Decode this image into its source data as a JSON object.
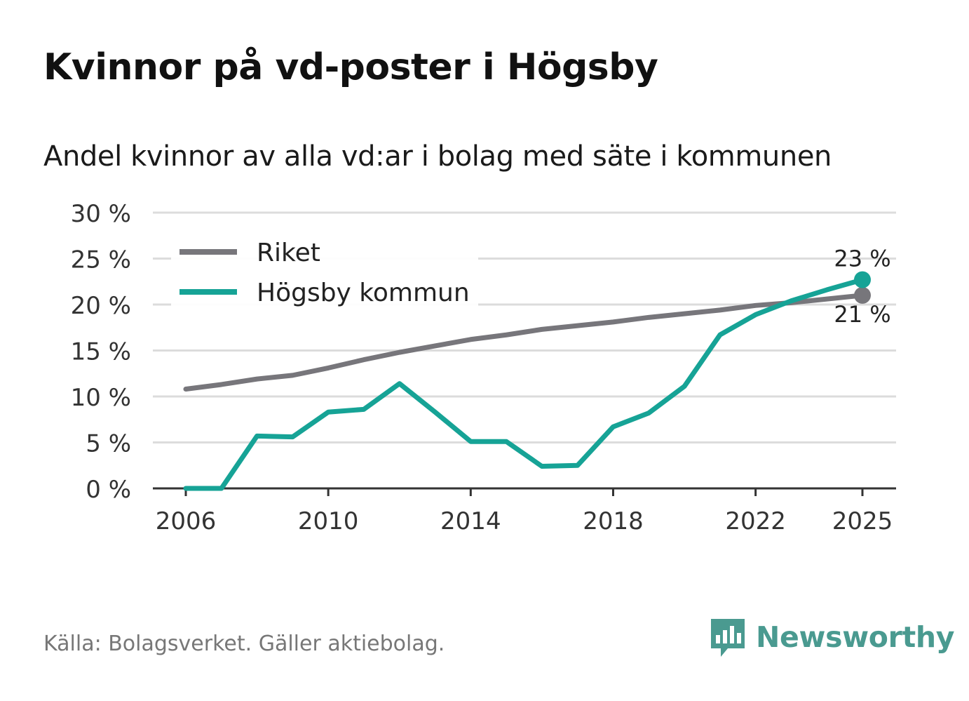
{
  "title": "Kvinnor på vd-poster i Högsby",
  "subtitle": "Andel kvinnor av alla vd:ar i bolag med säte i kommunen",
  "source": "Källa: Bolagsverket. Gäller aktiebolag.",
  "brand": "Newsworthy",
  "colors": {
    "riket": "#77767b",
    "kommun": "#16a396",
    "grid": "#dcdcdc",
    "axis": "#333333",
    "brand": "#4a9a90"
  },
  "chart_data": {
    "type": "line",
    "title": "Kvinnor på vd-poster i Högsby",
    "xlabel": "",
    "ylabel": "",
    "ylim": [
      0,
      30
    ],
    "xlim": [
      2006,
      2025
    ],
    "y_ticks": [
      0,
      5,
      10,
      15,
      20,
      25,
      30
    ],
    "y_tick_labels": [
      "0 %",
      "5 %",
      "10 %",
      "15 %",
      "20 %",
      "25 %",
      "30 %"
    ],
    "x_ticks": [
      2006,
      2010,
      2014,
      2018,
      2022,
      2025
    ],
    "x_tick_labels": [
      "2006",
      "2010",
      "2014",
      "2018",
      "2022",
      "2025"
    ],
    "x": [
      2006,
      2007,
      2008,
      2009,
      2010,
      2011,
      2012,
      2013,
      2014,
      2015,
      2016,
      2017,
      2018,
      2019,
      2020,
      2021,
      2022,
      2023,
      2024,
      2025
    ],
    "series": [
      {
        "name": "Riket",
        "values": [
          10.8,
          11.3,
          11.9,
          12.3,
          13.1,
          14.0,
          14.8,
          15.5,
          16.2,
          16.7,
          17.3,
          17.7,
          18.1,
          18.6,
          19.0,
          19.4,
          19.9,
          20.2,
          20.6,
          21.0
        ],
        "end_label": "21 %"
      },
      {
        "name": "Högsby kommun",
        "values": [
          0,
          0,
          5.7,
          5.6,
          8.3,
          8.6,
          11.4,
          8.3,
          5.1,
          5.1,
          2.4,
          2.5,
          6.7,
          8.2,
          11.1,
          16.7,
          18.9,
          20.4,
          21.6,
          22.7
        ],
        "end_label": "23 %"
      }
    ],
    "legend": {
      "position": "top-left",
      "entries": [
        "Riket",
        "Högsby kommun"
      ]
    }
  }
}
